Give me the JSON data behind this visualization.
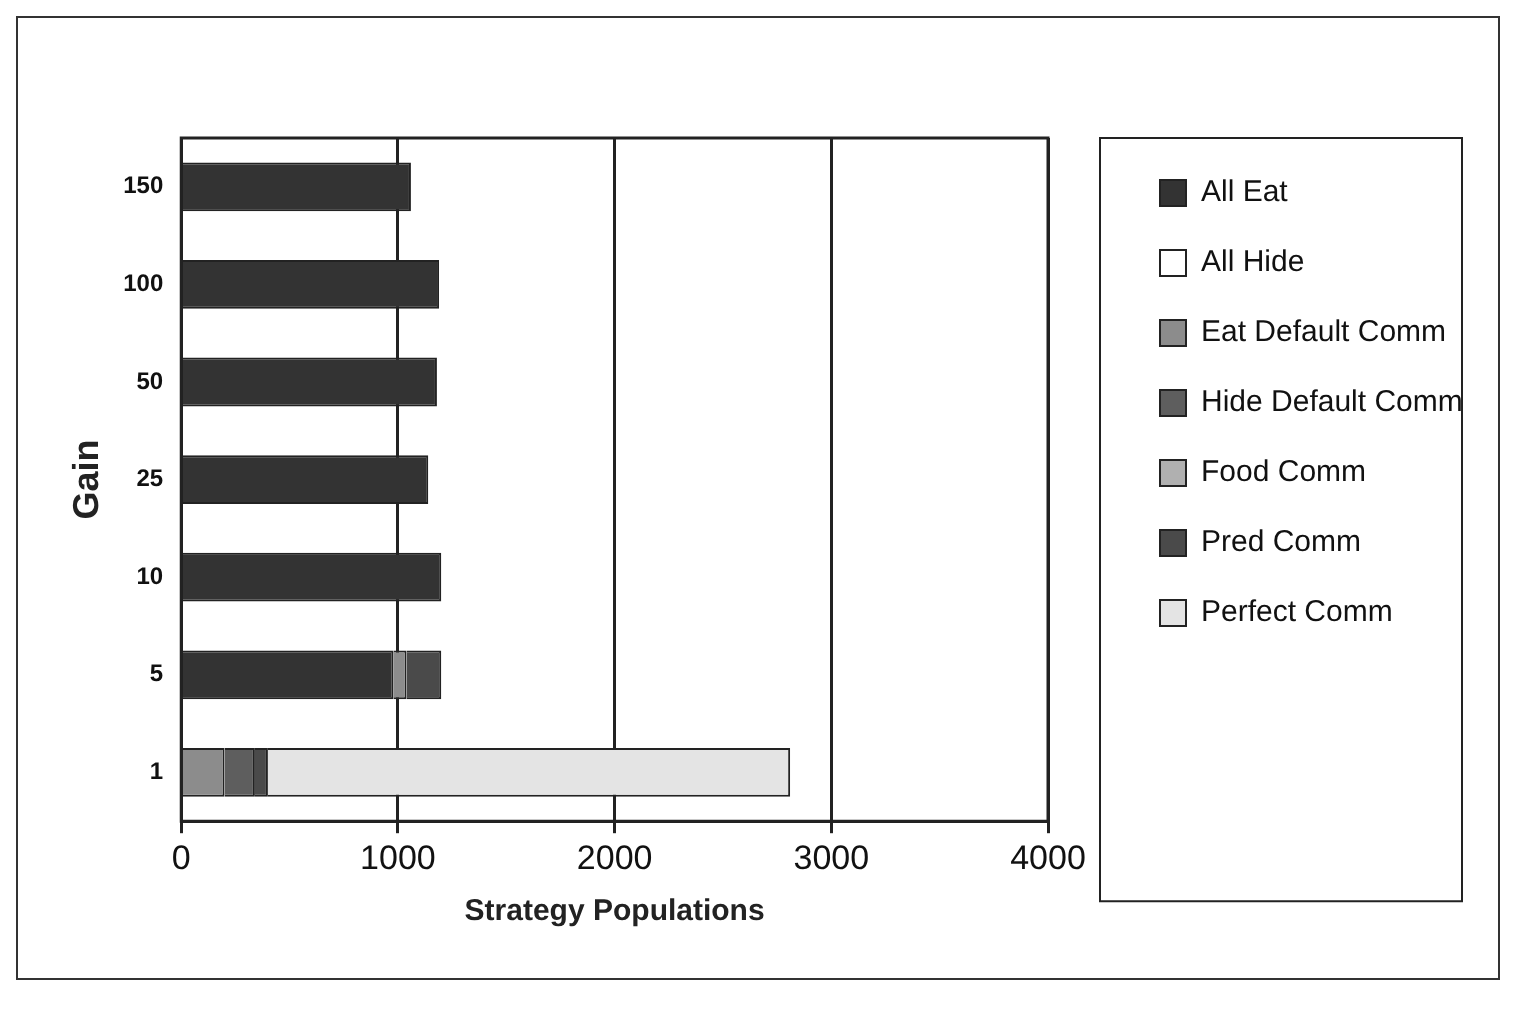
{
  "chart_data": {
    "type": "bar",
    "orientation": "horizontal",
    "stacked": true,
    "xlabel": "Strategy Populations",
    "ylabel": "Gain",
    "categories": [
      "150",
      "100",
      "50",
      "25",
      "10",
      "5",
      "1"
    ],
    "series": [
      {
        "name": "All Eat",
        "color": "#333333",
        "values": [
          1060,
          1190,
          1180,
          1140,
          1200,
          980,
          0
        ]
      },
      {
        "name": "All Hide",
        "color": "#ffffff",
        "values": [
          0,
          0,
          0,
          0,
          0,
          0,
          0
        ]
      },
      {
        "name": "Eat Default Comm",
        "color": "#8c8c8c",
        "values": [
          0,
          0,
          0,
          0,
          0,
          60,
          200
        ]
      },
      {
        "name": "Hide Default Comm",
        "color": "#5e5e5e",
        "values": [
          0,
          0,
          0,
          0,
          0,
          0,
          140
        ]
      },
      {
        "name": "Food Comm",
        "color": "#b0b0b0",
        "values": [
          0,
          0,
          0,
          0,
          0,
          0,
          0
        ]
      },
      {
        "name": "Pred Comm",
        "color": "#4a4a4a",
        "values": [
          0,
          0,
          0,
          0,
          0,
          160,
          60
        ]
      },
      {
        "name": "Perfect Comm",
        "color": "#e4e4e4",
        "values": [
          0,
          0,
          0,
          0,
          0,
          0,
          2410
        ]
      }
    ],
    "xlim": [
      0,
      4000
    ],
    "xticks": [
      0,
      1000,
      2000,
      3000,
      4000
    ],
    "grid": "x",
    "legend": "right"
  }
}
